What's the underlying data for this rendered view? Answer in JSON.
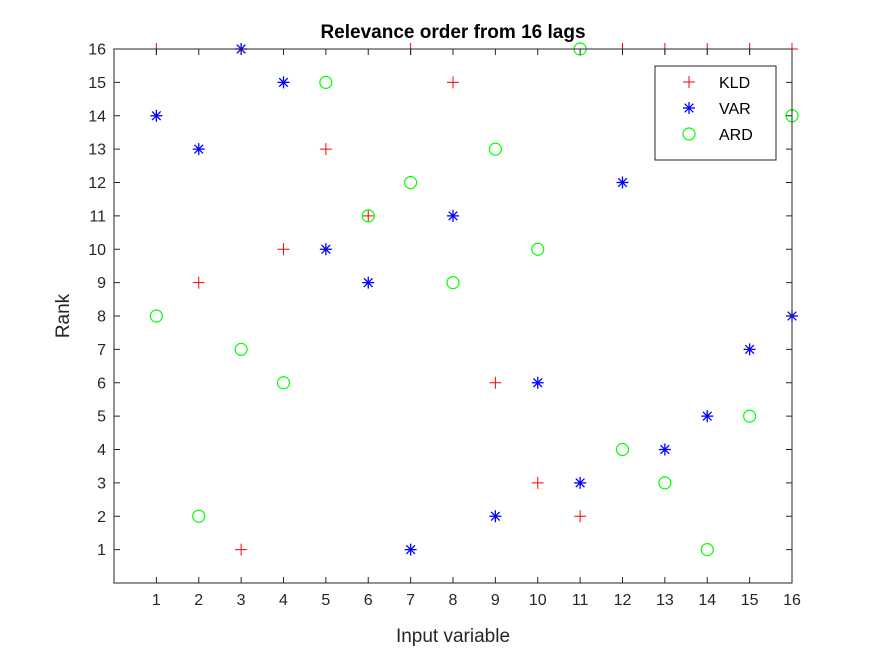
{
  "chart_data": {
    "type": "scatter",
    "title": "Relevance order from 16 lags",
    "xlabel": "Input variable",
    "ylabel": "Rank",
    "xlim": [
      0,
      16
    ],
    "ylim": [
      0,
      16
    ],
    "xticks": [
      1,
      2,
      3,
      4,
      5,
      6,
      7,
      8,
      9,
      10,
      11,
      12,
      13,
      14,
      15,
      16
    ],
    "yticks": [
      1,
      2,
      3,
      4,
      5,
      6,
      7,
      8,
      9,
      10,
      11,
      12,
      13,
      14,
      15,
      16
    ],
    "grid": false,
    "legend_position": "top-right",
    "x": [
      1,
      2,
      3,
      4,
      5,
      6,
      7,
      8,
      9,
      10,
      11,
      12,
      13,
      14,
      15,
      16
    ],
    "series": [
      {
        "name": "KLD",
        "marker": "plus",
        "color": "#ff0000",
        "values": [
          16,
          9,
          1,
          10,
          13,
          11,
          16,
          15,
          6,
          3,
          2,
          16,
          16,
          16,
          16,
          16
        ]
      },
      {
        "name": "VAR",
        "marker": "asterisk",
        "color": "#0000ff",
        "values": [
          14,
          13,
          16,
          15,
          10,
          9,
          1,
          11,
          2,
          6,
          3,
          12,
          4,
          5,
          7,
          8
        ]
      },
      {
        "name": "ARD",
        "marker": "circle",
        "color": "#00ff00",
        "values": [
          8,
          2,
          7,
          6,
          15,
          11,
          12,
          9,
          13,
          10,
          16,
          4,
          3,
          1,
          5,
          14
        ]
      }
    ]
  }
}
